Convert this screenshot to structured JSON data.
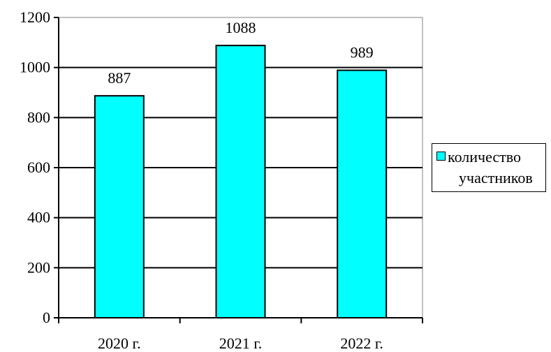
{
  "chart_data": {
    "type": "bar",
    "title": "",
    "xlabel": "",
    "ylabel": "",
    "categories": [
      "2020 г.",
      "2021 г.",
      "2022 г."
    ],
    "series": [
      {
        "name": "количество участников",
        "values": [
          887,
          1088,
          989
        ],
        "color": "#00FFFF"
      }
    ],
    "ylim": [
      0,
      1200
    ],
    "yticks": [
      0,
      200,
      400,
      600,
      800,
      1000,
      1200
    ],
    "grid": true,
    "legend_position": "right"
  },
  "legend": {
    "line1": "количество",
    "line2": "участников"
  }
}
